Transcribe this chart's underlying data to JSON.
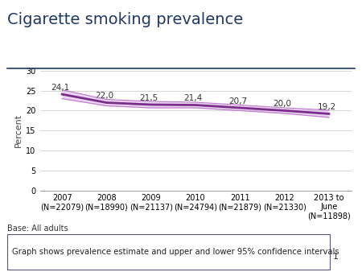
{
  "title": "Cigarette smoking prevalence",
  "ylabel": "Percent",
  "ylim": [
    0,
    30
  ],
  "yticks": [
    0,
    5,
    10,
    15,
    20,
    25,
    30
  ],
  "x_labels": [
    "2007\n(N=22079)",
    "2008\n(N=18990)",
    "2009\n(N=21137)",
    "2010\n(N=24794)",
    "2011\n(N=21879)",
    "2012\n(N=21330)",
    "2013 to\nJune\n(N=11898)"
  ],
  "x_positions": [
    0,
    1,
    2,
    3,
    4,
    5,
    6
  ],
  "values": [
    24.1,
    22.0,
    21.5,
    21.4,
    20.7,
    20.0,
    19.2
  ],
  "ci_upper": [
    25.2,
    22.8,
    22.3,
    22.1,
    21.4,
    20.7,
    20.1
  ],
  "ci_lower": [
    23.0,
    21.2,
    20.7,
    20.7,
    20.0,
    19.3,
    18.3
  ],
  "line_color": "#7B2D8B",
  "ci_fill_color": "#D9B3E6",
  "ci_alpha": 0.55,
  "ci_line_color": "#C080D0",
  "title_color": "#1F3864",
  "title_fontsize": 14,
  "value_fontsize": 7.5,
  "tick_fontsize": 7,
  "ylabel_fontsize": 8,
  "value_labels": [
    "24,1",
    "22,0",
    "21,5",
    "21,4",
    "20,7",
    "20,0",
    "19,2"
  ],
  "base_text": "Base: All adults",
  "footer_text": "Graph shows prevalence estimate and upper and lower 95% confidence intervals",
  "footnote_number": "1",
  "bg_color": "#FFFFFF",
  "grid_color": "#D0D0D0",
  "separator_color": "#1F3864"
}
